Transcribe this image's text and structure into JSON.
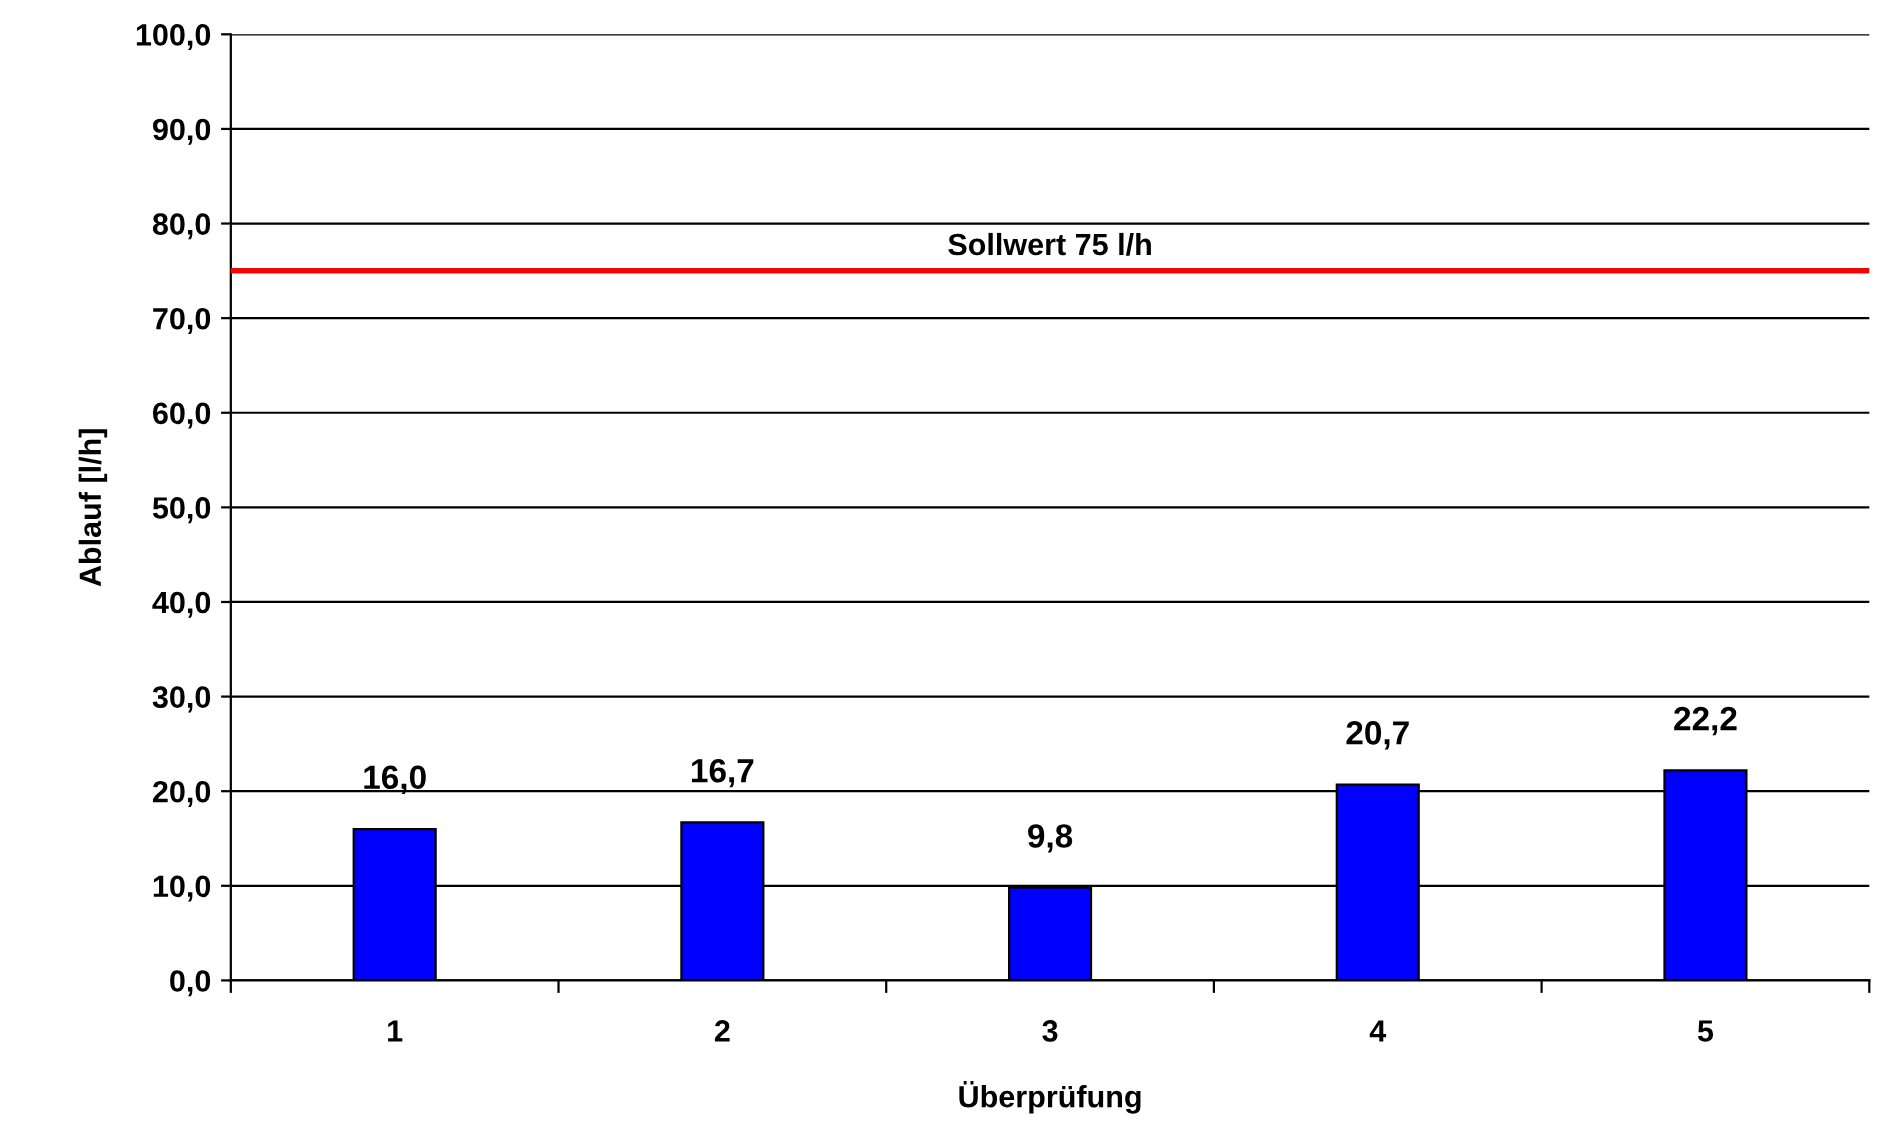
{
  "chart_data": {
    "type": "bar",
    "xlabel": "Überprüfung",
    "ylabel": "Ablauf [l/h]",
    "categories": [
      "1",
      "2",
      "3",
      "4",
      "5"
    ],
    "values": [
      16.0,
      16.7,
      9.8,
      20.7,
      22.2
    ],
    "value_labels": [
      "16,0",
      "16,7",
      "9,8",
      "20,7",
      "22,2"
    ],
    "color": "#0000ff",
    "ylim": [
      0,
      100
    ],
    "yticks": [
      {
        "value": 0,
        "label": "0,0"
      },
      {
        "value": 10,
        "label": "10,0"
      },
      {
        "value": 20,
        "label": "20,0"
      },
      {
        "value": 30,
        "label": "30,0"
      },
      {
        "value": 40,
        "label": "40,0"
      },
      {
        "value": 50,
        "label": "50,0"
      },
      {
        "value": 60,
        "label": "60,0"
      },
      {
        "value": 70,
        "label": "70,0"
      },
      {
        "value": 80,
        "label": "80,0"
      },
      {
        "value": 90,
        "label": "90,0"
      },
      {
        "value": 100,
        "label": "100,0"
      }
    ],
    "ref_lines": [
      {
        "axis": "y",
        "value": 75,
        "label": "Sollwert 75 l/h",
        "color": "#ff0000"
      }
    ],
    "grid": "y",
    "legend": false
  }
}
